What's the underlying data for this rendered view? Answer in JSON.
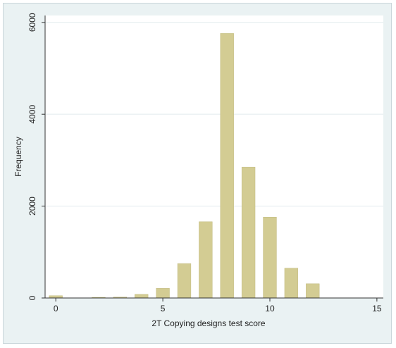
{
  "chart_data": {
    "type": "bar",
    "xlabel": "2T Copying designs test score",
    "ylabel": "Frequency",
    "xlim": [
      -0.5,
      15.3
    ],
    "ylim": [
      0,
      6150
    ],
    "xticks": [
      0,
      5,
      10,
      15
    ],
    "yticks": [
      0,
      2000,
      4000,
      6000
    ],
    "grid": true,
    "colors": {
      "bar": "#d3cc93",
      "bar_edge": "#c2bb80",
      "plot_bg": "#ffffff",
      "frame_bg": "#eaf2f3",
      "grid": "#e2ebee"
    },
    "x": [
      0,
      2,
      3,
      4,
      5,
      6,
      7,
      8,
      9,
      10,
      11,
      12
    ],
    "values": [
      50,
      15,
      20,
      80,
      210,
      750,
      1660,
      5760,
      2850,
      1760,
      650,
      310
    ]
  }
}
